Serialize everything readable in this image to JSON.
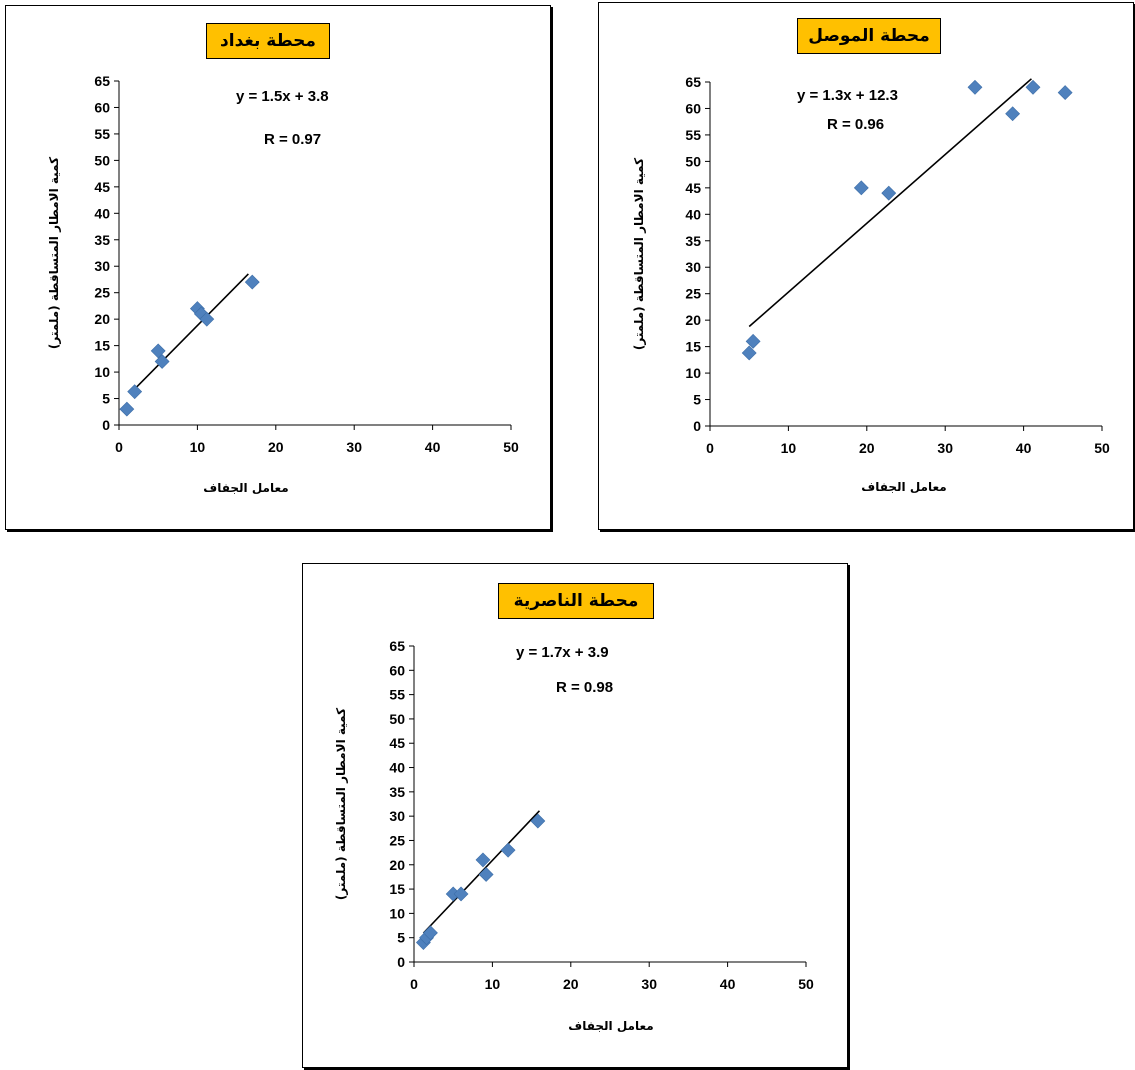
{
  "chart_data": [
    {
      "type": "scatter",
      "title": "محطة بغداد",
      "xlabel": "معامل الجفاف",
      "ylabel": "كمية الامطار المتساقطة (ملمتر)",
      "xlim": [
        0,
        50
      ],
      "ylim": [
        0,
        65
      ],
      "x_ticks": [
        "0",
        "10",
        "20",
        "30",
        "40",
        "50"
      ],
      "y_ticks": [
        "0",
        "5",
        "10",
        "15",
        "20",
        "25",
        "30",
        "35",
        "40",
        "45",
        "50",
        "55",
        "60",
        "65"
      ],
      "equation": "y = 1.5x + 3.8",
      "r_value": "R = 0.97",
      "trendline": {
        "slope": 1.5,
        "intercept": 3.8,
        "x_range": [
          1.5,
          16.5
        ]
      },
      "marker_color": "#4f81bd",
      "points": [
        {
          "x": 1,
          "y": 3
        },
        {
          "x": 2,
          "y": 6.3
        },
        {
          "x": 5,
          "y": 14
        },
        {
          "x": 5.5,
          "y": 12
        },
        {
          "x": 10,
          "y": 22
        },
        {
          "x": 10.5,
          "y": 21
        },
        {
          "x": 11.2,
          "y": 20
        },
        {
          "x": 17,
          "y": 27
        }
      ]
    },
    {
      "type": "scatter",
      "title": "محطة الموصل",
      "xlabel": "معامل الجفاف",
      "ylabel": "كمية الامطار المتساقطة (ملمتر)",
      "xlim": [
        0,
        50
      ],
      "ylim": [
        0,
        65
      ],
      "x_ticks": [
        "0",
        "10",
        "20",
        "30",
        "40",
        "50"
      ],
      "y_ticks": [
        "0",
        "5",
        "10",
        "15",
        "20",
        "25",
        "30",
        "35",
        "40",
        "45",
        "50",
        "55",
        "60",
        "65"
      ],
      "equation": "y = 1.3x + 12.3",
      "r_value": "R = 0.96",
      "trendline": {
        "slope": 1.3,
        "intercept": 12.3,
        "x_range": [
          5,
          41
        ]
      },
      "marker_color": "#4f81bd",
      "points": [
        {
          "x": 5,
          "y": 13.8
        },
        {
          "x": 5.5,
          "y": 16
        },
        {
          "x": 19.3,
          "y": 45
        },
        {
          "x": 22.8,
          "y": 44
        },
        {
          "x": 33.8,
          "y": 64
        },
        {
          "x": 38.6,
          "y": 59
        },
        {
          "x": 41.2,
          "y": 64
        },
        {
          "x": 45.3,
          "y": 63
        }
      ]
    },
    {
      "type": "scatter",
      "title": "محطة الناصرية",
      "xlabel": "معامل الجفاف",
      "ylabel": "كمية الامطار المتساقطة (ملمتر)",
      "xlim": [
        0,
        50
      ],
      "ylim": [
        0,
        65
      ],
      "x_ticks": [
        "0",
        "10",
        "20",
        "30",
        "40",
        "50"
      ],
      "y_ticks": [
        "0",
        "5",
        "10",
        "15",
        "20",
        "25",
        "30",
        "35",
        "40",
        "45",
        "50",
        "55",
        "60",
        "65"
      ],
      "equation": "y = 1.7x + 3.9",
      "r_value": "R = 0.98",
      "trendline": {
        "slope": 1.7,
        "intercept": 3.9,
        "x_range": [
          1.2,
          16
        ]
      },
      "marker_color": "#4f81bd",
      "points": [
        {
          "x": 1.2,
          "y": 4
        },
        {
          "x": 1.6,
          "y": 5
        },
        {
          "x": 2.1,
          "y": 6
        },
        {
          "x": 5,
          "y": 14
        },
        {
          "x": 6,
          "y": 14
        },
        {
          "x": 8.8,
          "y": 21
        },
        {
          "x": 9.2,
          "y": 18
        },
        {
          "x": 12,
          "y": 23
        },
        {
          "x": 15.8,
          "y": 29
        }
      ]
    }
  ]
}
